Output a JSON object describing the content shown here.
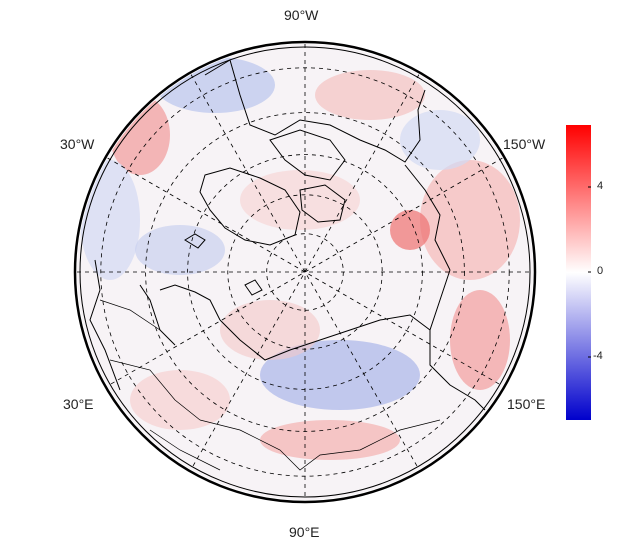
{
  "map": {
    "projection": "north-polar-stereographic",
    "longitude_labels": [
      "90°W",
      "30°W",
      "150°W",
      "30°E",
      "150°E",
      "90°E"
    ],
    "graticule_lons_deg": [
      0,
      30,
      60,
      90,
      120,
      150
    ],
    "graticule_lat_rings_deg": [
      80,
      70,
      60,
      50,
      40
    ],
    "coastline_color": "#000000",
    "grid_line_style": "dashed"
  },
  "colorbar": {
    "tick_labels": [
      "4",
      "0",
      "-4"
    ],
    "min": -6,
    "max": 6,
    "colors": [
      "#0000cc",
      "#ffffff",
      "#ff0000"
    ]
  }
}
